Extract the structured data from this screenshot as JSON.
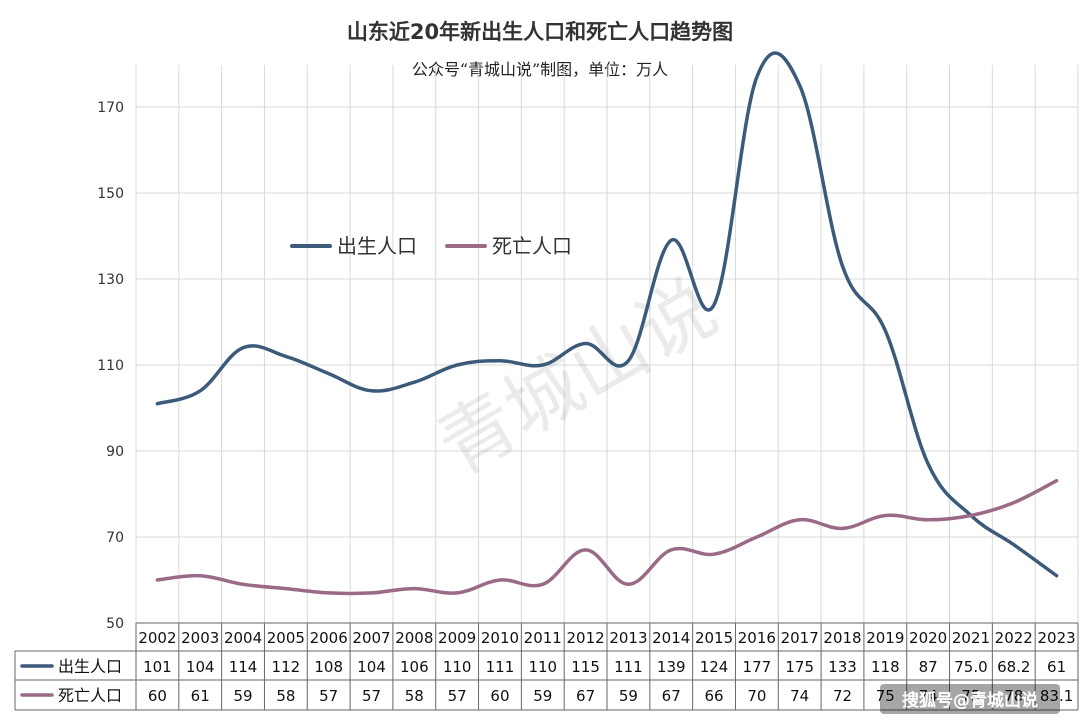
{
  "chart_data": {
    "type": "line",
    "title": "山东近20年新出生人口和死亡人口趋势图",
    "subtitle": "公众号“青城山说”制图，单位：万人",
    "categories": [
      "2002",
      "2003",
      "2004",
      "2005",
      "2006",
      "2007",
      "2008",
      "2009",
      "2010",
      "2011",
      "2012",
      "2013",
      "2014",
      "2015",
      "2016",
      "2017",
      "2018",
      "2019",
      "2020",
      "2021",
      "2022",
      "2023"
    ],
    "ylim": [
      50,
      180
    ],
    "yticks": [
      50,
      70,
      90,
      110,
      130,
      150,
      170
    ],
    "grid": true,
    "legend_position": "top-left",
    "series": [
      {
        "name": "出生人口",
        "color": "#3c5a7a",
        "values": [
          101,
          104,
          114,
          112,
          108,
          104,
          106,
          110,
          111,
          110,
          115,
          111,
          139,
          124,
          177,
          175,
          133,
          118,
          87,
          75.0,
          68.2,
          61
        ],
        "labels": [
          "101",
          "104",
          "114",
          "112",
          "108",
          "104",
          "106",
          "110",
          "111",
          "110",
          "115",
          "111",
          "139",
          "124",
          "177",
          "175",
          "133",
          "118",
          "87",
          "75.0",
          "68.2",
          "61"
        ]
      },
      {
        "name": "死亡人口",
        "color": "#9b6a86",
        "values": [
          60,
          61,
          59,
          58,
          57,
          57,
          58,
          57,
          60,
          59,
          67,
          59,
          67,
          66,
          70,
          74,
          72,
          75,
          74,
          75,
          78,
          83.1
        ],
        "labels": [
          "60",
          "61",
          "59",
          "58",
          "57",
          "57",
          "58",
          "57",
          "60",
          "59",
          "67",
          "59",
          "67",
          "66",
          "70",
          "74",
          "72",
          "75",
          "74",
          "75",
          "78",
          "83.1"
        ]
      }
    ],
    "watermark": "青城山说",
    "credit": "搜狐号@青城山说"
  }
}
